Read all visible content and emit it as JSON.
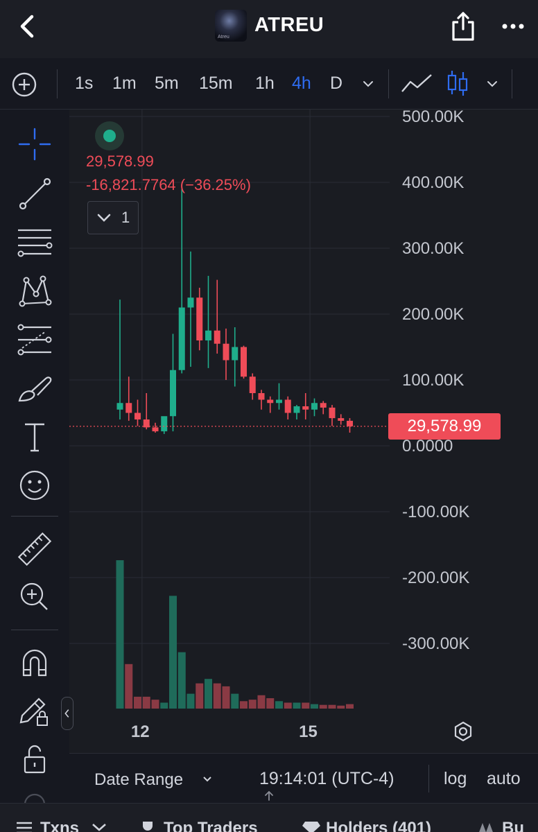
{
  "header": {
    "title": "ATREU",
    "logo_caption": "Atreu"
  },
  "toolbar": {
    "intervals": [
      "1s",
      "1m",
      "5m",
      "15m",
      "1h",
      "4h",
      "D"
    ],
    "active_interval": "4h"
  },
  "legend": {
    "price": "29,578.99",
    "change": "-16,821.7764 (−36.25%)",
    "indicator_count": "1"
  },
  "price_tag": "29,578.99",
  "bottom": {
    "date_range": "Date Range",
    "time": "19:14:01 (UTC-4)",
    "log": "log",
    "auto": "auto"
  },
  "tabs": [
    "Txns",
    "Top Traders",
    "Holders (401)",
    "Bu"
  ],
  "colors": {
    "up": "#1fae8c",
    "down": "#ef4c58",
    "accent": "#2f6cf0",
    "background": "#1a1c22"
  },
  "chart_data": {
    "type": "candlestick",
    "y_tick_labels": [
      "500.00K",
      "400.00K",
      "300.00K",
      "200.00K",
      "100.00K",
      "0.0000",
      "-100.00K",
      "-200.00K",
      "-300.00K"
    ],
    "y_ticks": [
      500000,
      400000,
      300000,
      200000,
      100000,
      0,
      -100000,
      -200000,
      -300000
    ],
    "ylim": [
      -400000,
      510000
    ],
    "x_tick_labels": [
      "12",
      "15"
    ],
    "x_tick_positions": [
      2.5,
      21.5
    ],
    "last_price": 29578.99,
    "candles": [
      {
        "o": 55000,
        "h": 222000,
        "l": 40000,
        "c": 65000,
        "v": 1.0
      },
      {
        "o": 65000,
        "h": 105000,
        "l": 38000,
        "c": 50000,
        "v": 0.3
      },
      {
        "o": 50000,
        "h": 70000,
        "l": 30000,
        "c": 40000,
        "v": 0.08
      },
      {
        "o": 40000,
        "h": 80000,
        "l": 25000,
        "c": 28000,
        "v": 0.08
      },
      {
        "o": 28000,
        "h": 35000,
        "l": 20000,
        "c": 22000,
        "v": 0.06
      },
      {
        "o": 22000,
        "h": 40000,
        "l": 18000,
        "c": 45000,
        "v": 0.04
      },
      {
        "o": 45000,
        "h": 170000,
        "l": 22000,
        "c": 115000,
        "v": 0.76
      },
      {
        "o": 115000,
        "h": 390000,
        "l": 110000,
        "c": 210000,
        "v": 0.38
      },
      {
        "o": 210000,
        "h": 295000,
        "l": 120000,
        "c": 225000,
        "v": 0.1
      },
      {
        "o": 225000,
        "h": 240000,
        "l": 145000,
        "c": 160000,
        "v": 0.17
      },
      {
        "o": 160000,
        "h": 258000,
        "l": 118000,
        "c": 175000,
        "v": 0.2
      },
      {
        "o": 175000,
        "h": 252000,
        "l": 140000,
        "c": 155000,
        "v": 0.17
      },
      {
        "o": 155000,
        "h": 178000,
        "l": 100000,
        "c": 130000,
        "v": 0.15
      },
      {
        "o": 130000,
        "h": 180000,
        "l": 90000,
        "c": 150000,
        "v": 0.1
      },
      {
        "o": 150000,
        "h": 152000,
        "l": 102000,
        "c": 105000,
        "v": 0.05
      },
      {
        "o": 105000,
        "h": 110000,
        "l": 70000,
        "c": 80000,
        "v": 0.06
      },
      {
        "o": 80000,
        "h": 85000,
        "l": 55000,
        "c": 70000,
        "v": 0.09
      },
      {
        "o": 70000,
        "h": 75000,
        "l": 50000,
        "c": 65000,
        "v": 0.07
      },
      {
        "o": 65000,
        "h": 95000,
        "l": 55000,
        "c": 70000,
        "v": 0.05
      },
      {
        "o": 70000,
        "h": 75000,
        "l": 40000,
        "c": 50000,
        "v": 0.04
      },
      {
        "o": 50000,
        "h": 62000,
        "l": 40000,
        "c": 60000,
        "v": 0.04
      },
      {
        "o": 60000,
        "h": 80000,
        "l": 40000,
        "c": 55000,
        "v": 0.04
      },
      {
        "o": 55000,
        "h": 72000,
        "l": 45000,
        "c": 65000,
        "v": 0.03
      },
      {
        "o": 65000,
        "h": 68000,
        "l": 48000,
        "c": 58000,
        "v": 0.025
      },
      {
        "o": 58000,
        "h": 62000,
        "l": 30000,
        "c": 42000,
        "v": 0.025
      },
      {
        "o": 42000,
        "h": 48000,
        "l": 32000,
        "c": 38000,
        "v": 0.02
      },
      {
        "o": 38000,
        "h": 42000,
        "l": 20000,
        "c": 29578.99,
        "v": 0.03
      }
    ]
  }
}
